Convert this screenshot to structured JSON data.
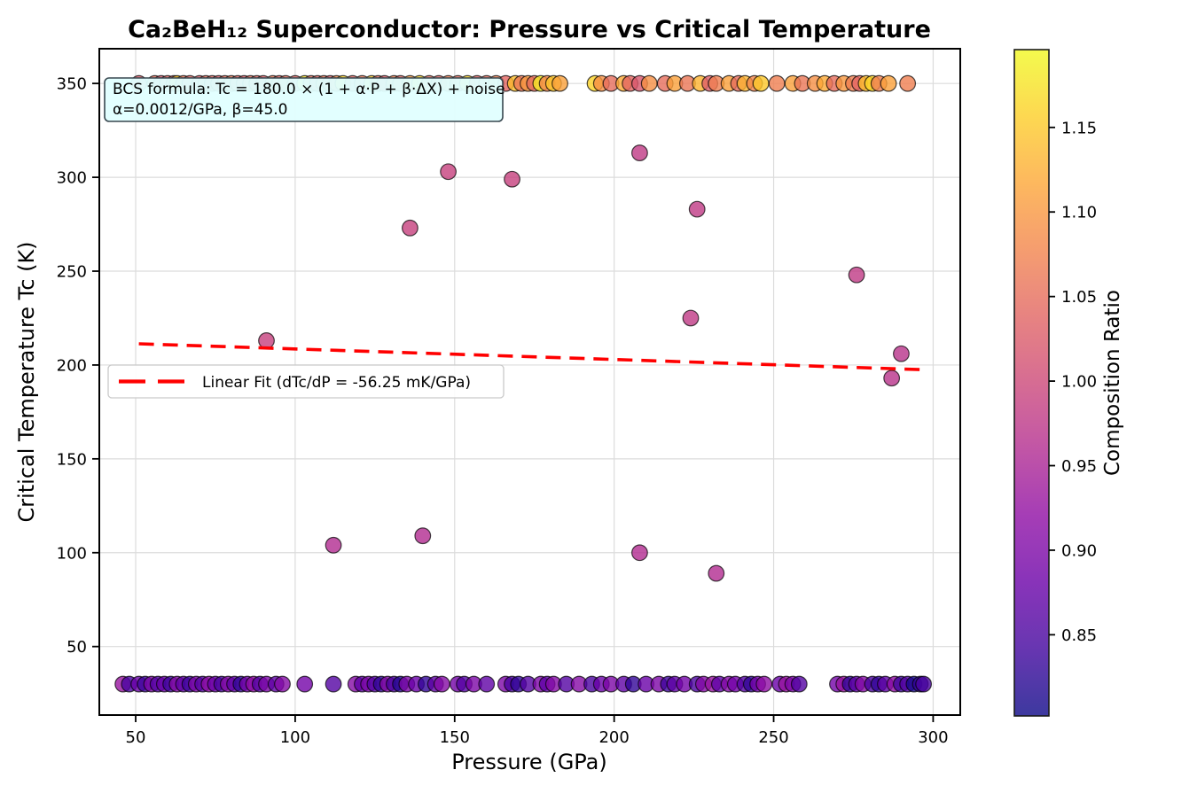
{
  "title": "Ca₂BeH₁₂ Superconductor: Pressure vs Critical Temperature",
  "axes": {
    "xlabel": "Pressure (GPa)",
    "ylabel": "Critical Temperature Tc (K)",
    "x_ticks": [
      50,
      100,
      150,
      200,
      250,
      300
    ],
    "y_ticks": [
      50,
      100,
      150,
      200,
      250,
      300,
      350
    ],
    "xlim": [
      38.6,
      308.5
    ],
    "ylim": [
      13.5,
      368.5
    ],
    "grid": true
  },
  "annotation": {
    "line1": "BCS formula: Tc = 180.0 × (1 + α·P + β·ΔX) + noise",
    "line2": "α=0.0012/GPa, β=45.0",
    "bg_color": "#e0ffff",
    "border_color": "#37474f"
  },
  "legend": {
    "label": "Linear Fit (dTc/dP = -56.25 mK/GPa)",
    "line_color": "#ff0000",
    "position": "left-center"
  },
  "colorbar": {
    "label": "Composition Ratio",
    "ticks": [
      "1.15",
      "1.10",
      "1.05",
      "1.00",
      "0.95",
      "0.90",
      "0.85"
    ],
    "tick_values": [
      1.15,
      1.1,
      1.05,
      1.0,
      0.95,
      0.9,
      0.85
    ],
    "vmin": 0.802,
    "vmax": 1.196,
    "colormap": "plasma",
    "alpha": 0.8,
    "plasma_stops": [
      [
        13,
        8,
        135
      ],
      [
        65,
        4,
        157
      ],
      [
        106,
        0,
        168
      ],
      [
        143,
        13,
        164
      ],
      [
        177,
        42,
        144
      ],
      [
        204,
        71,
        120
      ],
      [
        225,
        100,
        98
      ],
      [
        242,
        132,
        75
      ],
      [
        252,
        166,
        54
      ],
      [
        252,
        206,
        37
      ],
      [
        240,
        249,
        33
      ]
    ]
  },
  "chart_data": {
    "type": "scatter",
    "x_name": "Pressure (GPa)",
    "y_name": "Critical Temperature Tc (K)",
    "color_name": "Composition Ratio",
    "marker_alpha": 0.8,
    "fit_line": {
      "label": "Linear Fit (dTc/dP = -56.25 mK/GPa)",
      "slope_mK_per_GPa": -56.25,
      "x_start": 51,
      "y_start": 211.3,
      "x_end": 297,
      "y_end": 197.5,
      "color": "#ff0000",
      "style": "dashed"
    },
    "points_clipped_high_tc": 350,
    "points_clipped_high": [
      [
        51,
        1.03
      ],
      [
        56,
        1.05
      ],
      [
        58,
        1.02
      ],
      [
        60,
        1.04
      ],
      [
        62,
        1.03
      ],
      [
        63,
        1.15
      ],
      [
        65,
        1.06
      ],
      [
        67,
        1.04
      ],
      [
        70,
        1.03
      ],
      [
        72,
        1.05
      ],
      [
        74,
        1.04
      ],
      [
        76,
        1.03
      ],
      [
        78,
        1.05
      ],
      [
        80,
        1.06
      ],
      [
        82,
        1.04
      ],
      [
        84,
        1.03
      ],
      [
        86,
        1.05
      ],
      [
        88,
        1.04
      ],
      [
        90,
        1.03
      ],
      [
        93,
        1.06
      ],
      [
        95,
        1.04
      ],
      [
        97,
        1.05
      ],
      [
        100,
        1.04
      ],
      [
        103,
        1.17
      ],
      [
        105,
        1.05
      ],
      [
        107,
        1.04
      ],
      [
        109,
        1.06
      ],
      [
        111,
        1.03
      ],
      [
        113,
        1.08
      ],
      [
        115,
        1.16
      ],
      [
        118,
        1.04
      ],
      [
        121,
        1.06
      ],
      [
        124,
        1.15
      ],
      [
        126,
        1.05
      ],
      [
        128,
        1.03
      ],
      [
        131,
        1.07
      ],
      [
        133,
        1.04
      ],
      [
        136,
        1.1
      ],
      [
        139,
        1.16
      ],
      [
        142,
        1.05
      ],
      [
        145,
        1.04
      ],
      [
        148,
        1.07
      ],
      [
        151,
        1.05
      ],
      [
        154,
        1.16
      ],
      [
        157,
        1.04
      ],
      [
        160,
        1.05
      ],
      [
        163,
        1.07
      ],
      [
        166,
        1.04
      ],
      [
        169,
        1.14
      ],
      [
        171,
        1.06
      ],
      [
        173,
        1.1
      ],
      [
        175,
        1.05
      ],
      [
        177,
        1.18
      ],
      [
        179,
        1.08
      ],
      [
        181,
        1.15
      ],
      [
        183,
        1.11
      ],
      [
        194,
        1.16
      ],
      [
        196,
        1.09
      ],
      [
        199,
        1.05
      ],
      [
        203,
        1.12
      ],
      [
        205,
        1.04
      ],
      [
        208,
        1.02
      ],
      [
        211,
        1.09
      ],
      [
        216,
        1.05
      ],
      [
        219,
        1.11
      ],
      [
        223,
        1.06
      ],
      [
        227,
        1.13
      ],
      [
        230,
        1.03
      ],
      [
        232,
        1.07
      ],
      [
        236,
        1.11
      ],
      [
        239,
        1.05
      ],
      [
        241,
        1.13
      ],
      [
        244,
        1.08
      ],
      [
        246,
        1.15
      ],
      [
        251,
        1.07
      ],
      [
        256,
        1.11
      ],
      [
        259,
        1.06
      ],
      [
        263,
        1.09
      ],
      [
        266,
        1.12
      ],
      [
        269,
        1.05
      ],
      [
        272,
        1.1
      ],
      [
        275,
        1.07
      ],
      [
        277,
        1.04
      ],
      [
        279,
        1.14
      ],
      [
        281,
        1.16
      ],
      [
        283,
        1.07
      ],
      [
        286,
        1.11
      ],
      [
        292,
        1.07
      ]
    ],
    "points_clipped_low_tc": 30,
    "points_clipped_low": [
      [
        46,
        0.93
      ],
      [
        48,
        0.85
      ],
      [
        51,
        0.88
      ],
      [
        53,
        0.84
      ],
      [
        55,
        0.9
      ],
      [
        57,
        0.86
      ],
      [
        59,
        0.88
      ],
      [
        61,
        0.84
      ],
      [
        63,
        0.91
      ],
      [
        65,
        0.87
      ],
      [
        67,
        0.84
      ],
      [
        69,
        0.9
      ],
      [
        71,
        0.86
      ],
      [
        73,
        0.92
      ],
      [
        75,
        0.88
      ],
      [
        77,
        0.85
      ],
      [
        79,
        0.91
      ],
      [
        81,
        0.87
      ],
      [
        83,
        0.83
      ],
      [
        85,
        0.89
      ],
      [
        87,
        0.92
      ],
      [
        89,
        0.86
      ],
      [
        91,
        0.9
      ],
      [
        94,
        0.87
      ],
      [
        96,
        0.91
      ],
      [
        103,
        0.89
      ],
      [
        112,
        0.86
      ],
      [
        119,
        0.91
      ],
      [
        121,
        0.87
      ],
      [
        123,
        0.9
      ],
      [
        125,
        0.86
      ],
      [
        127,
        0.83
      ],
      [
        129,
        0.91
      ],
      [
        131,
        0.85
      ],
      [
        133,
        0.82
      ],
      [
        135,
        0.9
      ],
      [
        138,
        0.88
      ],
      [
        141,
        0.83
      ],
      [
        144,
        0.87
      ],
      [
        146,
        0.91
      ],
      [
        151,
        0.89
      ],
      [
        153,
        0.86
      ],
      [
        156,
        0.9
      ],
      [
        160,
        0.87
      ],
      [
        166,
        0.9
      ],
      [
        168,
        0.85
      ],
      [
        170,
        0.83
      ],
      [
        173,
        0.86
      ],
      [
        177,
        0.9
      ],
      [
        179,
        0.87
      ],
      [
        181,
        0.91
      ],
      [
        185,
        0.86
      ],
      [
        189,
        0.91
      ],
      [
        193,
        0.85
      ],
      [
        196,
        0.88
      ],
      [
        199,
        0.9
      ],
      [
        203,
        0.87
      ],
      [
        206,
        0.83
      ],
      [
        210,
        0.88
      ],
      [
        214,
        0.9
      ],
      [
        217,
        0.84
      ],
      [
        219,
        0.87
      ],
      [
        222,
        0.89
      ],
      [
        226,
        0.85
      ],
      [
        228,
        0.91
      ],
      [
        231,
        0.93
      ],
      [
        233,
        0.87
      ],
      [
        236,
        0.91
      ],
      [
        238,
        0.89
      ],
      [
        241,
        0.86
      ],
      [
        243,
        0.83
      ],
      [
        245,
        0.89
      ],
      [
        247,
        0.92
      ],
      [
        252,
        0.88
      ],
      [
        254,
        0.93
      ],
      [
        256,
        0.9
      ],
      [
        258,
        0.86
      ],
      [
        270,
        0.89
      ],
      [
        272,
        0.93
      ],
      [
        274,
        0.83
      ],
      [
        276,
        0.87
      ],
      [
        278,
        0.91
      ],
      [
        281,
        0.85
      ],
      [
        283,
        0.83
      ],
      [
        285,
        0.87
      ],
      [
        288,
        0.92
      ],
      [
        290,
        0.84
      ],
      [
        292,
        0.86
      ],
      [
        294,
        0.81
      ],
      [
        296,
        0.83
      ],
      [
        297,
        0.85
      ]
    ],
    "points_mid": [
      [
        91,
        213,
        0.99
      ],
      [
        112,
        104,
        0.96
      ],
      [
        136,
        273,
        0.99
      ],
      [
        140,
        109,
        0.96
      ],
      [
        148,
        303,
        0.99
      ],
      [
        168,
        299,
        0.99
      ],
      [
        208,
        313,
        0.98
      ],
      [
        208,
        100,
        0.96
      ],
      [
        224,
        225,
        0.98
      ],
      [
        226,
        283,
        0.98
      ],
      [
        232,
        89,
        0.96
      ],
      [
        276,
        248,
        0.98
      ],
      [
        287,
        193,
        0.97
      ],
      [
        290,
        206,
        0.97
      ]
    ]
  }
}
